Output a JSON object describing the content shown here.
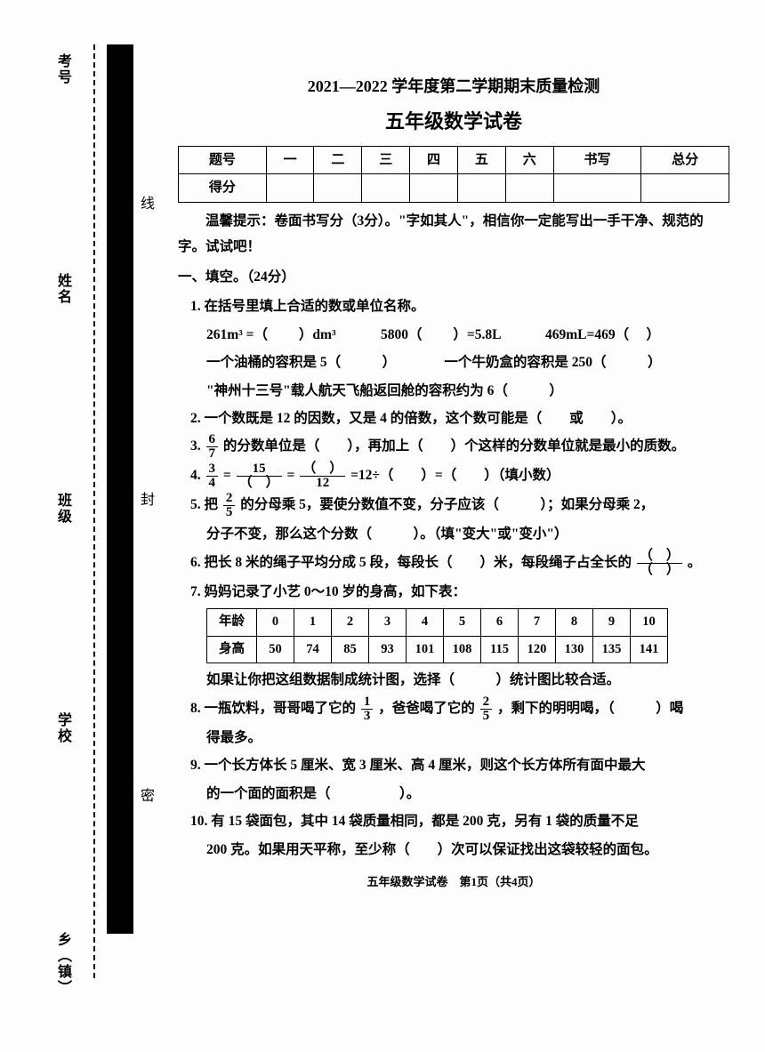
{
  "sidebar": {
    "labels": [
      "考号",
      "姓名",
      "班级",
      "学校",
      "乡（镇）"
    ],
    "seal": [
      "线",
      "封",
      "密"
    ]
  },
  "header": {
    "title1": "2021—2022 学年度第二学期期末质量检测",
    "title2": "五年级数学试卷"
  },
  "score_table": {
    "row1": [
      "题号",
      "一",
      "二",
      "三",
      "四",
      "五",
      "六",
      "书写",
      "总分"
    ],
    "row2_label": "得分"
  },
  "hint": "温馨提示：卷面书写分（3分）。\"字如其人\"，相信你一定能写出一手干净、规范的字。试试吧！",
  "section1": "一、填空。（24分）",
  "q1": {
    "head": "1. 在括号里填上合适的数或单位名称。",
    "line1_a": "261m³ =（",
    "line1_b": "）dm³",
    "line1_c": "5800（",
    "line1_d": "）=5.8L",
    "line1_e": "469mL=469（",
    "line1_f": "）",
    "line2": "一个油桶的容积是 5（　　　）　　　　一个牛奶盒的容积是 250（　　　）",
    "line3": "\"神州十三号\"载人航天飞船返回舱的容积约为 6（　　　）"
  },
  "q2": "2. 一个数既是 12 的因数，又是 4 的倍数，这个数可能是（　　或　　）。",
  "q3_a": "3. ",
  "q3_frac_n": "6",
  "q3_frac_d": "7",
  "q3_b": "的分数单位是（　　），再加上（　　）个这样的分数单位就是最小的质数。",
  "q4": {
    "pre": "4. ",
    "f1n": "3",
    "f1d": "4",
    "eq1": " = ",
    "f2n": "15",
    "f2d": "（　）",
    "eq2": " = ",
    "f3n": "（　）",
    "f3d": "12",
    "eq3": " =12÷（　　）=（　　）（填小数）"
  },
  "q5": {
    "pre": "5. 把",
    "fn": "2",
    "fd": "5",
    "mid": "的分母乘 5，要使分数值不变，分子应该（　　　）；如果分母乘 2，",
    "line2": "分子不变，那么这个分数（　　　）。（填\"变大\"或\"变小\"）"
  },
  "q6": {
    "a": "6. 把长 8 米的绳子平均分成 5 段，每段长（　　）米，每段绳子占全长的",
    "fn": "（　）",
    "fd": "（　）",
    "b": " 。"
  },
  "q7": {
    "head": "7. 妈妈记录了小艺 0～10 岁的身高，如下表：",
    "row1": [
      "年龄",
      "0",
      "1",
      "2",
      "3",
      "4",
      "5",
      "6",
      "7",
      "8",
      "9",
      "10"
    ],
    "row2": [
      "身高",
      "50",
      "74",
      "85",
      "93",
      "101",
      "108",
      "115",
      "120",
      "130",
      "135",
      "141"
    ],
    "tail": "如果让你把这组数据制成统计图，选择（　　　）统计图比较合适。"
  },
  "q8": {
    "a": "8. 一瓶饮料，哥哥喝了它的",
    "f1n": "1",
    "f1d": "3",
    "b": "，爸爸喝了它的",
    "f2n": "2",
    "f2d": "5",
    "c": "，剩下的明明喝，（　　　）喝",
    "d": "得最多。"
  },
  "q9": {
    "a": "9. 一个长方体长 5 厘米、宽 3 厘米、高 4 厘米，则这个长方体所有面中最大",
    "b": "的一个面的面积是（　　　　　）。"
  },
  "q10": {
    "a": "10. 有 15 袋面包，其中 14 袋质量相同，都是 200 克，另有 1 袋的质量不足",
    "b": "200 克。如果用天平称，至少称（　　）次可以保证找出这袋较轻的面包。"
  },
  "footer": "五年级数学试卷　第1页（共4页）",
  "colors": {
    "text": "#000000",
    "bg": "#fdfdfd",
    "strip": "#000000"
  }
}
